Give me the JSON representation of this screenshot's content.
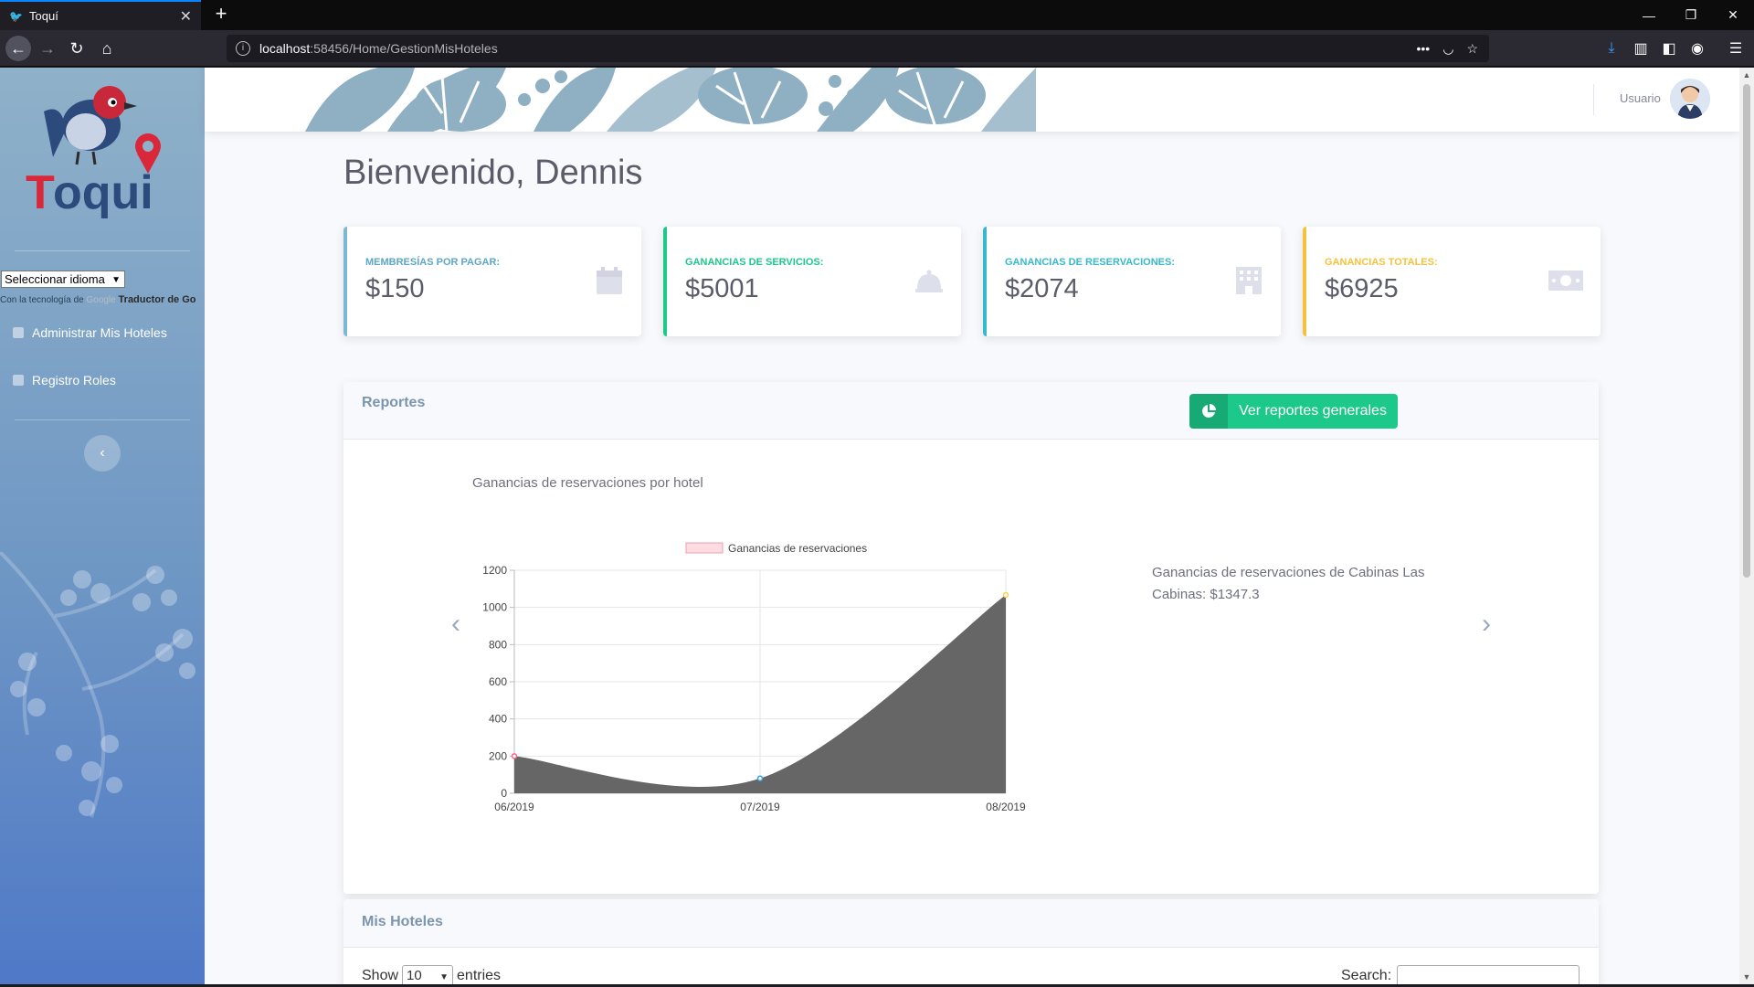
{
  "browser": {
    "tab_title": "Toquí",
    "url_host": "localhost",
    "url_path": ":58456/Home/GestionMisHoteles"
  },
  "sidebar": {
    "language_select": "Seleccionar idioma",
    "powered_prefix": "Con la tecnología de",
    "powered_google": "Google",
    "powered_suffix": "Traductor de Go",
    "items": [
      {
        "label": "Administrar Mis Hoteles"
      },
      {
        "label": "Registro Roles"
      }
    ]
  },
  "topbar": {
    "user_label": "Usuario"
  },
  "page": {
    "title": "Bienvenido, Dennis"
  },
  "cards": [
    {
      "label": "Membresías por pagar:",
      "value": "$150",
      "color": "#36b9cc",
      "icon": "calendar-icon"
    },
    {
      "label": "Ganancias de servicios:",
      "value": "$5001",
      "color": "#1cc88a",
      "icon": "bell-icon"
    },
    {
      "label": "Ganancias de reservaciones:",
      "value": "$2074",
      "color": "#36b9cc",
      "icon": "building-icon"
    },
    {
      "label": "Ganancias totales:",
      "value": "$6925",
      "color": "#f6c23e",
      "icon": "money-icon"
    }
  ],
  "reports": {
    "title": "Reportes",
    "button_label": "Ver reportes generales",
    "chart_title": "Ganancias de reservaciones por hotel",
    "info_text": "Ganancias de reservaciones de Cabinas Las Cabinas: $1347.3"
  },
  "chart_data": {
    "type": "area",
    "categories": [
      "06/2019",
      "07/2019",
      "08/2019"
    ],
    "series": [
      {
        "name": "Ganancias de reservaciones",
        "values": [
          200,
          80,
          1067.3
        ]
      }
    ],
    "ylim": [
      0,
      1200
    ],
    "yticks": [
      0,
      200,
      400,
      600,
      800,
      1000,
      1200
    ],
    "fill_color": "#666666",
    "legend_swatch_color": "#ffdce2",
    "legend_position": "top",
    "grid": true
  },
  "hotels": {
    "title": "Mis Hoteles",
    "show_label": "Show",
    "entries_value": "10",
    "entries_label": "entries",
    "search_label": "Search:"
  }
}
